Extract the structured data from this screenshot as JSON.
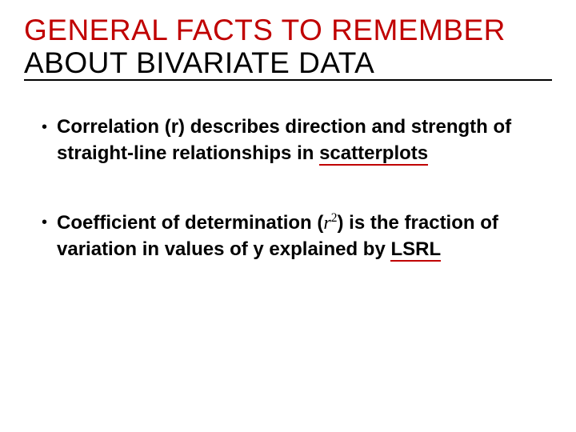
{
  "title": {
    "line1": "GENERAL FACTS TO REMEMBER",
    "line2": "ABOUT BIVARIATE DATA",
    "line1_color": "#c00000",
    "rule_color": "#000000"
  },
  "bullets": [
    {
      "pre": "Correlation (r) describes",
      "bold1": " direction ",
      "mid1": "and",
      "bold2": " strength of straight-line ",
      "mid2": "relationships in ",
      "tail_underlined": "scatterplots"
    },
    {
      "pre": "Coefficient of determination ",
      "math_open": "(",
      "math_r": "r",
      "math_sup": "2",
      "math_close": ")",
      "mid": " is the fraction of variation in values of y explained by ",
      "tail_underlined": "LSRL"
    }
  ],
  "style": {
    "body_font_size": 24,
    "title_font_size": 37,
    "underline_color": "#c00000",
    "text_color": "#000000",
    "background": "#ffffff"
  }
}
